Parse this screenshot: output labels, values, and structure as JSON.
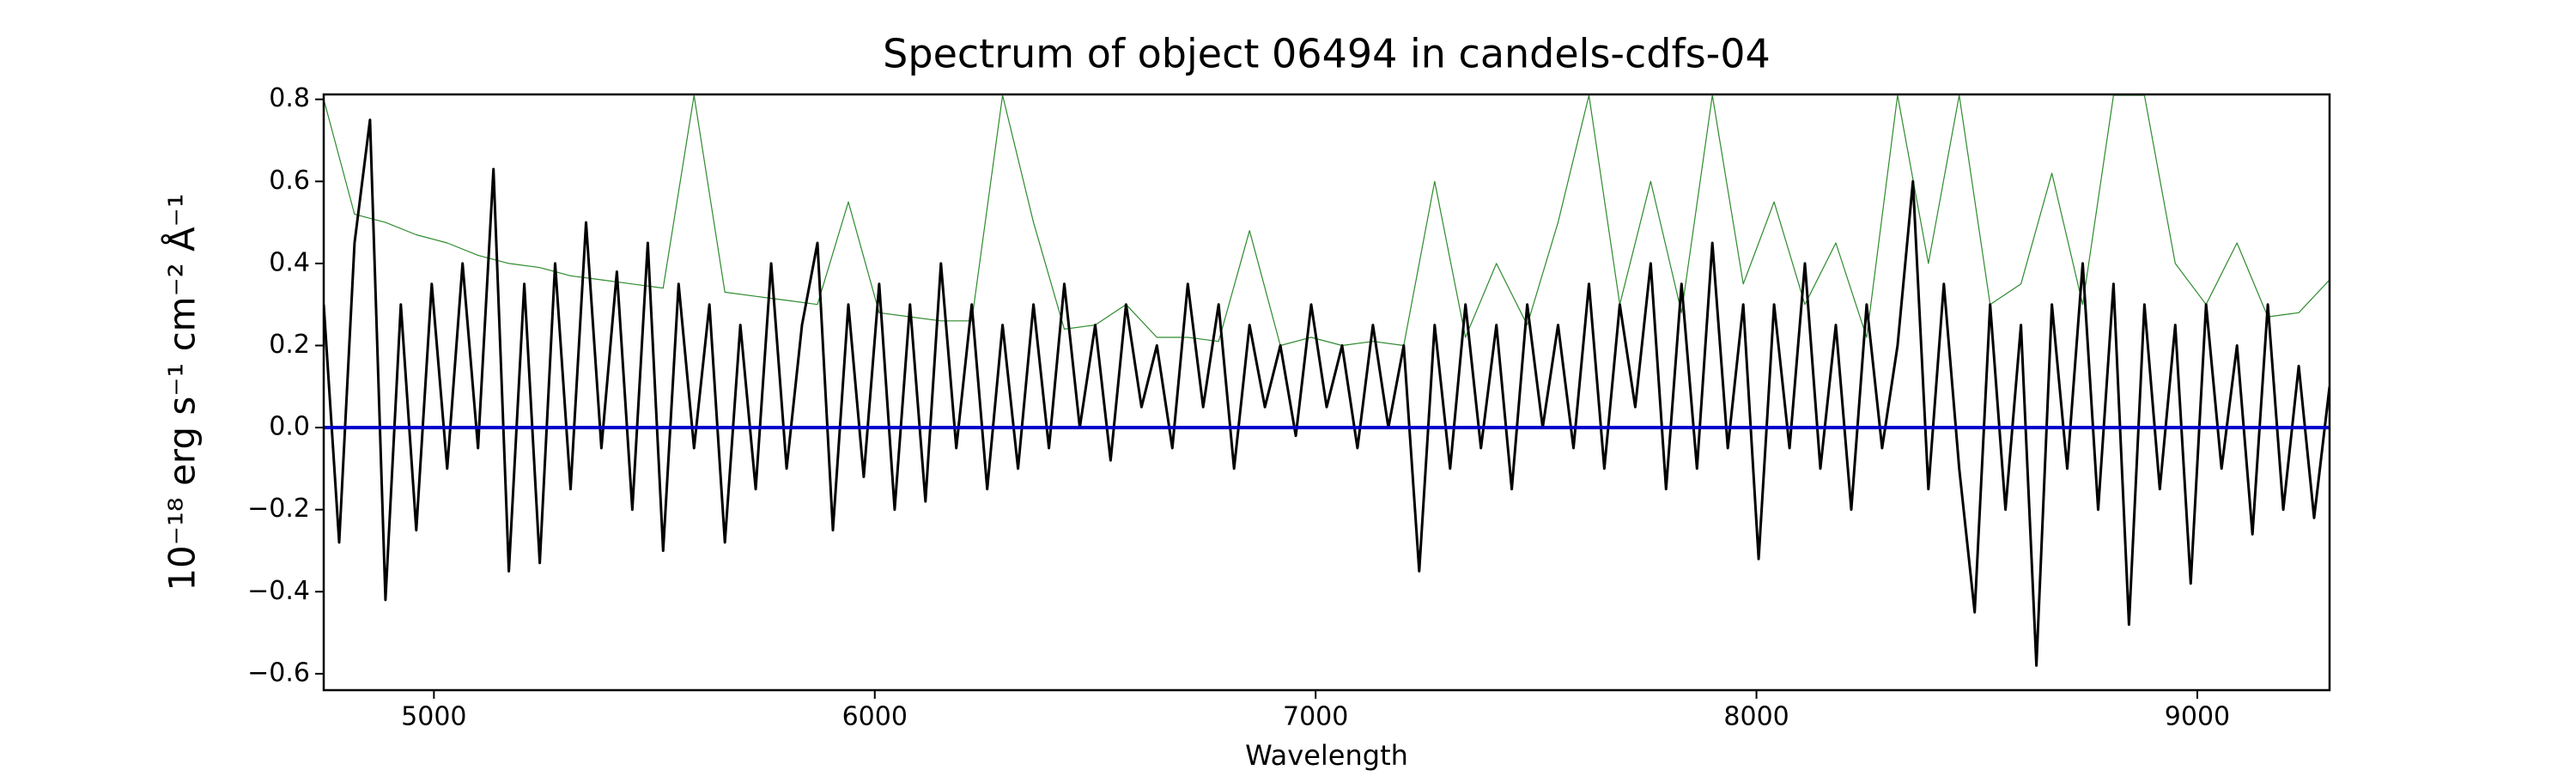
{
  "chart_data": {
    "type": "line",
    "title": "Spectrum of object 06494 in candels-cdfs-04",
    "xlabel": "Wavelength",
    "ylabel": "10⁻¹⁸ erg s⁻¹ cm⁻² Å⁻¹",
    "xlim": [
      4750,
      9300
    ],
    "ylim": [
      -0.64,
      0.812
    ],
    "xticks": [
      5000,
      6000,
      7000,
      8000,
      9000
    ],
    "yticks": [
      {
        "value": -0.6,
        "label": "−0.6"
      },
      {
        "value": -0.4,
        "label": "−0.4"
      },
      {
        "value": -0.2,
        "label": "−0.2"
      },
      {
        "value": 0,
        "label": "0.0"
      },
      0.2,
      0.4,
      0.6,
      0.8
    ],
    "series": [
      {
        "color": "#2e8b2e",
        "linewidth": 1.2,
        "x": [
          4750,
          4820,
          4890,
          4960,
          5030,
          5100,
          5170,
          5240,
          5310,
          5380,
          5450,
          5520,
          5590,
          5660,
          5730,
          5800,
          5870,
          5940,
          6010,
          6080,
          6150,
          6220,
          6290,
          6360,
          6430,
          6500,
          6570,
          6640,
          6710,
          6780,
          6850,
          6920,
          6990,
          7060,
          7130,
          7200,
          7270,
          7340,
          7410,
          7480,
          7550,
          7620,
          7690,
          7760,
          7830,
          7900,
          7970,
          8040,
          8110,
          8180,
          8250,
          8320,
          8390,
          8460,
          8530,
          8600,
          8670,
          8740,
          8810,
          8880,
          8950,
          9020,
          9090,
          9160,
          9230,
          9300
        ],
        "values": [
          0.8,
          0.52,
          0.5,
          0.47,
          0.45,
          0.42,
          0.4,
          0.39,
          0.37,
          0.36,
          0.35,
          0.34,
          0.81,
          0.33,
          0.32,
          0.31,
          0.3,
          0.55,
          0.28,
          0.27,
          0.26,
          0.26,
          0.81,
          0.5,
          0.24,
          0.25,
          0.3,
          0.22,
          0.22,
          0.21,
          0.48,
          0.2,
          0.22,
          0.2,
          0.21,
          0.2,
          0.6,
          0.22,
          0.4,
          0.25,
          0.5,
          0.81,
          0.3,
          0.6,
          0.28,
          0.81,
          0.35,
          0.55,
          0.3,
          0.45,
          0.22,
          0.81,
          0.4,
          0.81,
          0.3,
          0.35,
          0.62,
          0.3,
          0.81,
          0.81,
          0.4,
          0.3,
          0.45,
          0.27,
          0.28,
          0.36
        ]
      },
      {
        "color": "#000000",
        "linewidth": 3,
        "x": [
          4750,
          4785,
          4820,
          4855,
          4890,
          4925,
          4960,
          4995,
          5030,
          5065,
          5100,
          5135,
          5170,
          5205,
          5240,
          5275,
          5310,
          5345,
          5380,
          5415,
          5450,
          5485,
          5520,
          5555,
          5590,
          5625,
          5660,
          5695,
          5730,
          5765,
          5800,
          5835,
          5870,
          5905,
          5940,
          5975,
          6010,
          6045,
          6080,
          6115,
          6150,
          6185,
          6220,
          6255,
          6290,
          6325,
          6360,
          6395,
          6430,
          6465,
          6500,
          6535,
          6570,
          6605,
          6640,
          6675,
          6710,
          6745,
          6780,
          6815,
          6850,
          6885,
          6920,
          6955,
          6990,
          7025,
          7060,
          7095,
          7130,
          7165,
          7200,
          7235,
          7270,
          7305,
          7340,
          7375,
          7410,
          7445,
          7480,
          7515,
          7550,
          7585,
          7620,
          7655,
          7690,
          7725,
          7760,
          7795,
          7830,
          7865,
          7900,
          7935,
          7970,
          8005,
          8040,
          8075,
          8110,
          8145,
          8180,
          8215,
          8250,
          8285,
          8320,
          8355,
          8390,
          8425,
          8460,
          8495,
          8530,
          8565,
          8600,
          8635,
          8670,
          8705,
          8740,
          8775,
          8810,
          8845,
          8880,
          8915,
          8950,
          8985,
          9020,
          9055,
          9090,
          9125,
          9160,
          9195,
          9230,
          9265,
          9300
        ],
        "values": [
          0.3,
          -0.28,
          0.45,
          0.75,
          -0.42,
          0.3,
          -0.25,
          0.35,
          -0.1,
          0.4,
          -0.05,
          0.63,
          -0.35,
          0.35,
          -0.33,
          0.4,
          -0.15,
          0.5,
          -0.05,
          0.38,
          -0.2,
          0.45,
          -0.3,
          0.35,
          -0.05,
          0.3,
          -0.28,
          0.25,
          -0.15,
          0.4,
          -0.1,
          0.25,
          0.45,
          -0.25,
          0.3,
          -0.12,
          0.35,
          -0.2,
          0.3,
          -0.18,
          0.4,
          -0.05,
          0.3,
          -0.15,
          0.25,
          -0.1,
          0.3,
          -0.05,
          0.35,
          0.0,
          0.25,
          -0.08,
          0.3,
          0.05,
          0.2,
          -0.05,
          0.35,
          0.05,
          0.3,
          -0.1,
          0.25,
          0.05,
          0.2,
          -0.02,
          0.3,
          0.05,
          0.2,
          -0.05,
          0.25,
          0.0,
          0.2,
          -0.35,
          0.25,
          -0.1,
          0.3,
          -0.05,
          0.25,
          -0.15,
          0.3,
          0.0,
          0.25,
          -0.05,
          0.35,
          -0.1,
          0.3,
          0.05,
          0.4,
          -0.15,
          0.35,
          -0.1,
          0.45,
          -0.05,
          0.3,
          -0.32,
          0.3,
          -0.05,
          0.4,
          -0.1,
          0.25,
          -0.2,
          0.3,
          -0.05,
          0.2,
          0.6,
          -0.15,
          0.35,
          -0.1,
          -0.45,
          0.3,
          -0.2,
          0.25,
          -0.58,
          0.3,
          -0.1,
          0.4,
          -0.2,
          0.35,
          -0.48,
          0.3,
          -0.15,
          0.25,
          -0.38,
          0.3,
          -0.1,
          0.2,
          -0.26,
          0.3,
          -0.2,
          0.15,
          -0.22,
          0.1
        ]
      },
      {
        "color": "#0000cc",
        "linewidth": 4,
        "x": [
          4750,
          9300
        ],
        "values": [
          0,
          0
        ]
      }
    ]
  }
}
